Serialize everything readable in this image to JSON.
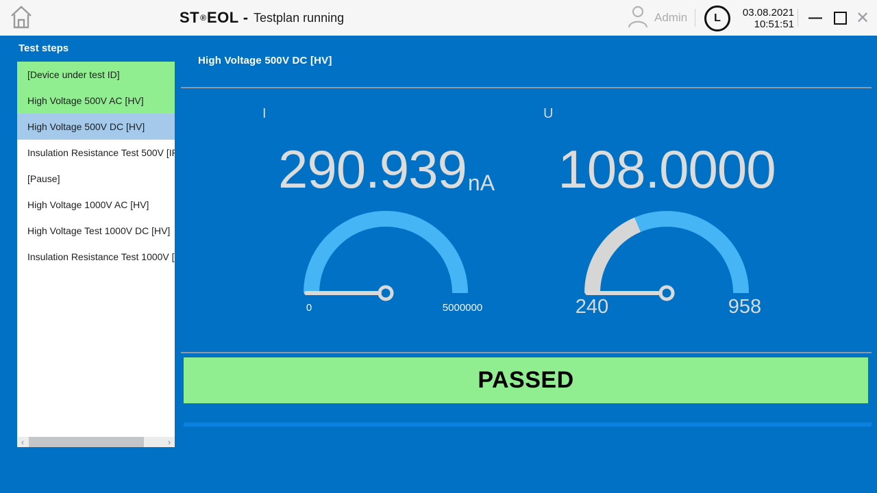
{
  "titlebar": {
    "brand_st": "ST",
    "brand_reg": "®",
    "brand_eol": "EOL",
    "separator": "-",
    "status": "Testplan running",
    "user": "Admin",
    "date": "03.08.2021",
    "time": "10:51:51"
  },
  "icons": {
    "home": "house-outline",
    "user": "person-outline",
    "clock_glyph": "L",
    "minimize": "—",
    "maximize": "square-outline",
    "close": "✕",
    "scroll_left": "‹",
    "scroll_right": "›"
  },
  "sidebar": {
    "header": "Test steps",
    "items": [
      {
        "label": "[Device under test ID]",
        "state": "passed"
      },
      {
        "label": "High Voltage 500V AC [HV]",
        "state": "passed"
      },
      {
        "label": "High Voltage 500V DC [HV]",
        "state": "active"
      },
      {
        "label": "Insulation Resistance Test 500V [IR",
        "state": "pending"
      },
      {
        "label": "[Pause]",
        "state": "pending"
      },
      {
        "label": "High Voltage 1000V AC [HV]",
        "state": "pending"
      },
      {
        "label": "High Voltage Test 1000V DC [HV]",
        "state": "pending"
      },
      {
        "label": "Insulation Resistance Test 1000V [I",
        "state": "pending"
      }
    ]
  },
  "main": {
    "title": "High Voltage 500V DC [HV]",
    "gauges": [
      {
        "label": "I",
        "value": "290.939",
        "unit": "nA",
        "min": "0",
        "max": "5000000"
      },
      {
        "label": "U",
        "value": "108.0000",
        "unit": "",
        "min": "240",
        "max": "958"
      }
    ],
    "result": "PASSED"
  },
  "colors": {
    "background_blue": "#0071C4",
    "gauge_arc_blue": "#45B5F6",
    "gauge_arc_gray": "#d6d6d6",
    "needle_gray": "#d9d9d9",
    "passed_green": "#90EE90",
    "selected_item_blue": "#A5C9EB",
    "progress_line_blue": "#0C80DF",
    "titlebar_bg": "#f6f6f6"
  }
}
